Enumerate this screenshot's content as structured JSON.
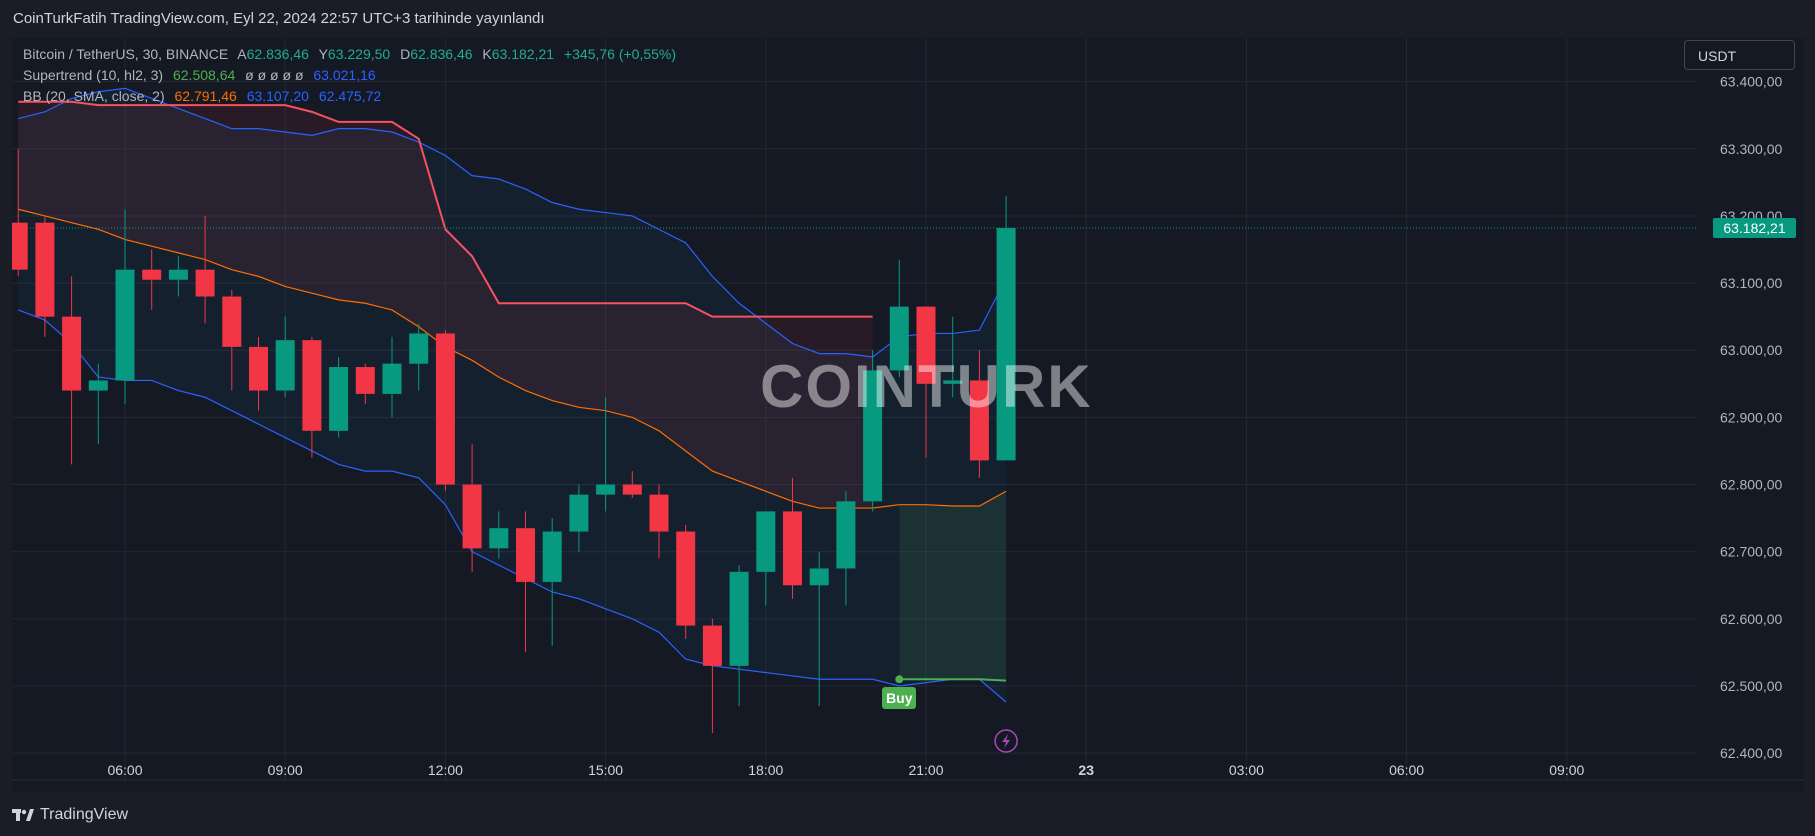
{
  "header": {
    "caption": "CoinTurkFatih TradingView.com, Eyl 22, 2024 22:57 UTC+3 tarihinde yayınlandı"
  },
  "legend": {
    "symbol": "Bitcoin / TetherUS, 30, BINANCE",
    "open_label": "A",
    "open": "62.836,46",
    "high_label": "Y",
    "high": "63.229,50",
    "low_label": "D",
    "low": "62.836,46",
    "close_label": "K",
    "close": "63.182,21",
    "change": "+345,76 (+0,55%)",
    "supertrend_label": "Supertrend (10, hl2, 3)",
    "supertrend_value": "62.508,64",
    "supertrend_empty": "ø ø ø ø ø",
    "supertrend_value2": "63.021,16",
    "bb_label": "BB (20, SMA, close, 2)",
    "bb_basis": "62.791,46",
    "bb_upper": "63.107,20",
    "bb_lower": "62.475,72"
  },
  "currency_button": "USDT",
  "watermark": "COINTURK",
  "buy_label": "Buy",
  "last_price_label": "63.182,21",
  "footer": {
    "brand": "TradingView"
  },
  "colors": {
    "up": "#089981",
    "down": "#f23645",
    "supertrend_down": "#f7525f",
    "supertrend_up": "#4caf50",
    "bb_basis": "#ff6d00",
    "bb_band": "#2962ff",
    "background": "#151924",
    "grid": "#242833"
  },
  "chart_data": {
    "type": "candlestick",
    "x_tick_labels": [
      "06:00",
      "09:00",
      "12:00",
      "15:00",
      "18:00",
      "21:00",
      "23",
      "03:00",
      "06:00",
      "09:00"
    ],
    "y_tick_labels": [
      "63.400,00",
      "63.300,00",
      "63.200,00",
      "63.100,00",
      "63.000,00",
      "62.900,00",
      "62.800,00",
      "62.700,00",
      "62.600,00",
      "62.500,00",
      "62.400,00"
    ],
    "y_ticks": [
      63400,
      63300,
      63200,
      63100,
      63000,
      62900,
      62800,
      62700,
      62600,
      62500,
      62400
    ],
    "ylim": [
      62360,
      63465
    ],
    "x_ticks_time": [
      "2024-09-22 06:00",
      "2024-09-22 09:00",
      "2024-09-22 12:00",
      "2024-09-22 15:00",
      "2024-09-22 18:00",
      "2024-09-22 21:00",
      "2024-09-23 00:00",
      "2024-09-23 03:00",
      "2024-09-23 06:00",
      "2024-09-23 09:00"
    ],
    "candles": [
      {
        "t": "2024-09-22 04:00",
        "o": 63190,
        "h": 63300,
        "l": 63110,
        "c": 63120
      },
      {
        "t": "2024-09-22 04:30",
        "o": 63190,
        "h": 63200,
        "l": 63020,
        "c": 63050
      },
      {
        "t": "2024-09-22 05:00",
        "o": 63050,
        "h": 63110,
        "l": 62830,
        "c": 62940
      },
      {
        "t": "2024-09-22 05:30",
        "o": 62940,
        "h": 62980,
        "l": 62860,
        "c": 62955
      },
      {
        "t": "2024-09-22 06:00",
        "o": 62955,
        "h": 63210,
        "l": 62920,
        "c": 63120
      },
      {
        "t": "2024-09-22 06:30",
        "o": 63120,
        "h": 63150,
        "l": 63060,
        "c": 63105
      },
      {
        "t": "2024-09-22 07:00",
        "o": 63105,
        "h": 63140,
        "l": 63080,
        "c": 63120
      },
      {
        "t": "2024-09-22 07:30",
        "o": 63120,
        "h": 63200,
        "l": 63040,
        "c": 63080
      },
      {
        "t": "2024-09-22 08:00",
        "o": 63080,
        "h": 63090,
        "l": 62940,
        "c": 63005
      },
      {
        "t": "2024-09-22 08:30",
        "o": 63005,
        "h": 63020,
        "l": 62910,
        "c": 62940
      },
      {
        "t": "2024-09-22 09:00",
        "o": 62940,
        "h": 63050,
        "l": 62930,
        "c": 63015
      },
      {
        "t": "2024-09-22 09:30",
        "o": 63015,
        "h": 63020,
        "l": 62840,
        "c": 62880
      },
      {
        "t": "2024-09-22 10:00",
        "o": 62880,
        "h": 62990,
        "l": 62870,
        "c": 62975
      },
      {
        "t": "2024-09-22 10:30",
        "o": 62975,
        "h": 62980,
        "l": 62920,
        "c": 62935
      },
      {
        "t": "2024-09-22 11:00",
        "o": 62935,
        "h": 63020,
        "l": 62900,
        "c": 62980
      },
      {
        "t": "2024-09-22 11:30",
        "o": 62980,
        "h": 63040,
        "l": 62940,
        "c": 63025
      },
      {
        "t": "2024-09-22 12:00",
        "o": 63025,
        "h": 63030,
        "l": 62790,
        "c": 62800
      },
      {
        "t": "2024-09-22 12:30",
        "o": 62800,
        "h": 62860,
        "l": 62670,
        "c": 62705
      },
      {
        "t": "2024-09-22 13:00",
        "o": 62705,
        "h": 62760,
        "l": 62690,
        "c": 62735
      },
      {
        "t": "2024-09-22 13:30",
        "o": 62735,
        "h": 62760,
        "l": 62550,
        "c": 62655
      },
      {
        "t": "2024-09-22 14:00",
        "o": 62655,
        "h": 62750,
        "l": 62560,
        "c": 62730
      },
      {
        "t": "2024-09-22 14:30",
        "o": 62730,
        "h": 62800,
        "l": 62700,
        "c": 62785
      },
      {
        "t": "2024-09-22 15:00",
        "o": 62785,
        "h": 62930,
        "l": 62760,
        "c": 62800
      },
      {
        "t": "2024-09-22 15:30",
        "o": 62800,
        "h": 62820,
        "l": 62780,
        "c": 62785
      },
      {
        "t": "2024-09-22 16:00",
        "o": 62785,
        "h": 62800,
        "l": 62690,
        "c": 62730
      },
      {
        "t": "2024-09-22 16:30",
        "o": 62730,
        "h": 62740,
        "l": 62570,
        "c": 62590
      },
      {
        "t": "2024-09-22 17:00",
        "o": 62590,
        "h": 62600,
        "l": 62430,
        "c": 62530
      },
      {
        "t": "2024-09-22 17:30",
        "o": 62530,
        "h": 62680,
        "l": 62470,
        "c": 62670
      },
      {
        "t": "2024-09-22 18:00",
        "o": 62670,
        "h": 62760,
        "l": 62620,
        "c": 62760
      },
      {
        "t": "2024-09-22 18:30",
        "o": 62760,
        "h": 62810,
        "l": 62630,
        "c": 62650
      },
      {
        "t": "2024-09-22 19:00",
        "o": 62650,
        "h": 62700,
        "l": 62470,
        "c": 62675
      },
      {
        "t": "2024-09-22 19:30",
        "o": 62675,
        "h": 62790,
        "l": 62620,
        "c": 62775
      },
      {
        "t": "2024-09-22 20:00",
        "o": 62775,
        "h": 63000,
        "l": 62760,
        "c": 62970
      },
      {
        "t": "2024-09-22 20:30",
        "o": 62970,
        "h": 63135,
        "l": 62960,
        "c": 63065
      },
      {
        "t": "2024-09-22 21:00",
        "o": 63065,
        "h": 63065,
        "l": 62840,
        "c": 62950
      },
      {
        "t": "2024-09-22 21:30",
        "o": 62950,
        "h": 63050,
        "l": 62930,
        "c": 62955
      },
      {
        "t": "2024-09-22 22:00",
        "o": 62955,
        "h": 63000,
        "l": 62810,
        "c": 62836
      },
      {
        "t": "2024-09-22 22:30",
        "o": 62836,
        "h": 63230,
        "l": 62836,
        "c": 63182
      }
    ],
    "bb_basis": [
      63210,
      63200,
      63190,
      63180,
      63165,
      63155,
      63145,
      63135,
      63120,
      63110,
      63095,
      63085,
      63075,
      63070,
      63060,
      63035,
      63005,
      62985,
      62960,
      62940,
      62925,
      62915,
      62910,
      62900,
      62880,
      62850,
      62820,
      62805,
      62790,
      62775,
      62765,
      62765,
      62765,
      62770,
      62770,
      62768,
      62768,
      62790
    ],
    "bb_upper": [
      63345,
      63355,
      63375,
      63385,
      63390,
      63375,
      63360,
      63345,
      63330,
      63330,
      63325,
      63320,
      63330,
      63330,
      63325,
      63310,
      63290,
      63260,
      63255,
      63240,
      63220,
      63210,
      63205,
      63200,
      63180,
      63160,
      63110,
      63070,
      63040,
      63010,
      62995,
      62995,
      62990,
      63020,
      63025,
      63025,
      63030,
      63107
    ],
    "bb_lower": [
      63060,
      63045,
      63010,
      62960,
      62955,
      62955,
      62940,
      62930,
      62910,
      62890,
      62870,
      62850,
      62830,
      62820,
      62820,
      62810,
      62770,
      62700,
      62680,
      62660,
      62640,
      62630,
      62615,
      62600,
      62580,
      62540,
      62530,
      62525,
      62520,
      62515,
      62510,
      62510,
      62510,
      62500,
      62505,
      62510,
      62510,
      62476
    ],
    "supertrend_down": [
      63370,
      63370,
      63370,
      63365,
      63365,
      63365,
      63365,
      63365,
      63365,
      63365,
      63365,
      63355,
      63340,
      63340,
      63340,
      63315,
      63180,
      63140,
      63070,
      63070,
      63070,
      63070,
      63070,
      63070,
      63070,
      63070,
      63050,
      63050,
      63050,
      63050,
      63050,
      63050,
      63050,
      null,
      null,
      null,
      null,
      null
    ],
    "supertrend_up": [
      null,
      null,
      null,
      null,
      null,
      null,
      null,
      null,
      null,
      null,
      null,
      null,
      null,
      null,
      null,
      null,
      null,
      null,
      null,
      null,
      null,
      null,
      null,
      null,
      null,
      null,
      null,
      null,
      null,
      null,
      null,
      null,
      null,
      62510,
      62510,
      62510,
      62510,
      62508
    ],
    "buy_signal_index": 33
  }
}
